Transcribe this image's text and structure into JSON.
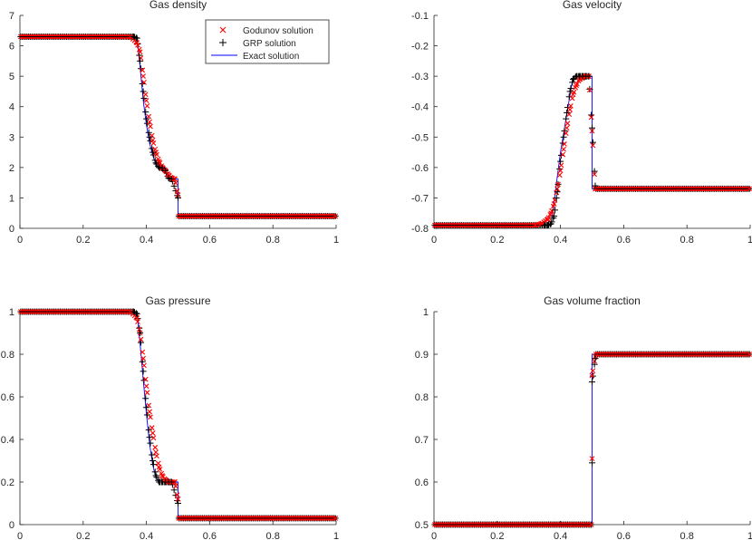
{
  "legend": {
    "entries": [
      {
        "label": "Godunov solution",
        "marker": "x",
        "color": "#ff0000"
      },
      {
        "label": "GRP solution",
        "marker": "+",
        "color": "#000000"
      },
      {
        "label": "Exact solution",
        "marker": "line",
        "color": "#0000ff"
      }
    ]
  },
  "chart_data": [
    {
      "id": "density",
      "type": "line",
      "title": "Gas density",
      "xlabel": "",
      "ylabel": "",
      "xlim": [
        0,
        1
      ],
      "ylim": [
        0,
        7
      ],
      "xticks": [
        0,
        0.2,
        0.4,
        0.6,
        0.8,
        1
      ],
      "xtick_labels": [
        "0",
        "0.2",
        "0.4",
        "0.6",
        "0.8",
        "1"
      ],
      "yticks": [
        0,
        1,
        2,
        3,
        4,
        5,
        6,
        7
      ],
      "ytick_labels": [
        "0",
        "1",
        "2",
        "3",
        "4",
        "5",
        "6",
        "7"
      ],
      "series": [
        {
          "name": "Exact solution",
          "x": [
            0,
            0.37,
            0.38,
            0.39,
            0.4,
            0.41,
            0.42,
            0.43,
            0.44,
            0.46,
            0.47,
            0.4701,
            0.5,
            0.5001,
            1
          ],
          "values": [
            6.3,
            6.3,
            5.3,
            4.2,
            3.4,
            2.8,
            2.4,
            2.1,
            2.0,
            1.98,
            1.65,
            1.62,
            1.62,
            0.4,
            0.4
          ]
        },
        {
          "name": "Godunov solution",
          "x": [
            0.35,
            0.37,
            0.38,
            0.39,
            0.4,
            0.41,
            0.42,
            0.43,
            0.44,
            0.45,
            0.46,
            0.47,
            0.48,
            0.49,
            0.5
          ],
          "values": [
            6.3,
            6.1,
            5.8,
            5.0,
            4.2,
            3.5,
            2.9,
            2.5,
            2.2,
            2.0,
            1.9,
            1.75,
            1.65,
            1.62,
            1.1
          ]
        },
        {
          "name": "GRP solution",
          "x": [
            0.36,
            0.37,
            0.38,
            0.39,
            0.4,
            0.41,
            0.42,
            0.43,
            0.44,
            0.45,
            0.46,
            0.47,
            0.48,
            0.5
          ],
          "values": [
            6.3,
            6.25,
            5.5,
            4.5,
            3.6,
            3.0,
            2.5,
            2.15,
            2.0,
            1.98,
            1.9,
            1.65,
            1.62,
            1.0
          ]
        }
      ]
    },
    {
      "id": "velocity",
      "type": "line",
      "title": "Gas velocity",
      "xlabel": "",
      "ylabel": "",
      "xlim": [
        0,
        1
      ],
      "ylim": [
        -0.8,
        -0.1
      ],
      "xticks": [
        0,
        0.2,
        0.4,
        0.6,
        0.8,
        1
      ],
      "xtick_labels": [
        "0",
        "0.2",
        "0.4",
        "0.6",
        "0.8",
        "1"
      ],
      "yticks": [
        -0.8,
        -0.7,
        -0.6,
        -0.5,
        -0.4,
        -0.3,
        -0.2,
        -0.1
      ],
      "ytick_labels": [
        "-0.8",
        "-0.7",
        "-0.6",
        "-0.5",
        "-0.4",
        "-0.3",
        "-0.2",
        "-0.1"
      ],
      "series": [
        {
          "name": "Exact solution",
          "x": [
            0,
            0.37,
            0.4,
            0.44,
            0.5,
            0.5001,
            1
          ],
          "values": [
            -0.79,
            -0.79,
            -0.55,
            -0.3,
            -0.3,
            -0.67,
            -0.67
          ]
        },
        {
          "name": "Godunov solution",
          "x": [
            0.32,
            0.34,
            0.36,
            0.37,
            0.38,
            0.39,
            0.4,
            0.41,
            0.42,
            0.43,
            0.44,
            0.45,
            0.46,
            0.47,
            0.48,
            0.49,
            0.5,
            0.51
          ],
          "values": [
            -0.79,
            -0.785,
            -0.77,
            -0.75,
            -0.72,
            -0.67,
            -0.61,
            -0.54,
            -0.47,
            -0.41,
            -0.36,
            -0.33,
            -0.31,
            -0.305,
            -0.3,
            -0.3,
            -0.48,
            -0.67
          ]
        },
        {
          "name": "GRP solution",
          "x": [
            0.35,
            0.36,
            0.37,
            0.38,
            0.39,
            0.4,
            0.41,
            0.42,
            0.43,
            0.44,
            0.45,
            0.46,
            0.47,
            0.48,
            0.49,
            0.5,
            0.51
          ],
          "values": [
            -0.79,
            -0.79,
            -0.785,
            -0.76,
            -0.68,
            -0.58,
            -0.5,
            -0.42,
            -0.35,
            -0.31,
            -0.3,
            -0.3,
            -0.3,
            -0.3,
            -0.3,
            -0.47,
            -0.66
          ]
        }
      ]
    },
    {
      "id": "pressure",
      "type": "line",
      "title": "Gas pressure",
      "xlabel": "",
      "ylabel": "",
      "xlim": [
        0,
        1
      ],
      "ylim": [
        0,
        1
      ],
      "xticks": [
        0,
        0.2,
        0.4,
        0.6,
        0.8,
        1
      ],
      "xtick_labels": [
        "0",
        "0.2",
        "0.4",
        "0.6",
        "0.8",
        "1"
      ],
      "yticks": [
        0,
        0.2,
        0.4,
        0.6,
        0.8,
        1
      ],
      "ytick_labels": [
        "0",
        "0.2",
        "0.4",
        "0.6",
        "0.8",
        "1"
      ],
      "series": [
        {
          "name": "Exact solution",
          "x": [
            0,
            0.37,
            0.38,
            0.39,
            0.4,
            0.41,
            0.42,
            0.43,
            0.44,
            0.5,
            0.5001,
            1
          ],
          "values": [
            1,
            1,
            0.85,
            0.68,
            0.52,
            0.38,
            0.28,
            0.22,
            0.2,
            0.2,
            0.03,
            0.03
          ]
        },
        {
          "name": "Godunov solution",
          "x": [
            0.35,
            0.37,
            0.38,
            0.39,
            0.4,
            0.41,
            0.42,
            0.43,
            0.44,
            0.45,
            0.46,
            0.47,
            0.48,
            0.49,
            0.5
          ],
          "values": [
            1.0,
            0.97,
            0.9,
            0.78,
            0.65,
            0.53,
            0.43,
            0.34,
            0.27,
            0.23,
            0.21,
            0.2,
            0.2,
            0.2,
            0.12
          ]
        },
        {
          "name": "GRP solution",
          "x": [
            0.36,
            0.37,
            0.38,
            0.39,
            0.4,
            0.41,
            0.42,
            0.43,
            0.44,
            0.45,
            0.46,
            0.47,
            0.48,
            0.5
          ],
          "values": [
            1.0,
            0.99,
            0.9,
            0.72,
            0.55,
            0.41,
            0.3,
            0.23,
            0.2,
            0.2,
            0.2,
            0.2,
            0.2,
            0.1
          ]
        }
      ]
    },
    {
      "id": "volume_fraction",
      "type": "line",
      "title": "Gas volume fraction",
      "xlabel": "",
      "ylabel": "",
      "xlim": [
        0,
        1
      ],
      "ylim": [
        0.5,
        1
      ],
      "xticks": [
        0,
        0.2,
        0.4,
        0.6,
        0.8,
        1
      ],
      "xtick_labels": [
        "0",
        "0.2",
        "0.4",
        "0.6",
        "0.8",
        "1"
      ],
      "yticks": [
        0.5,
        0.6,
        0.7,
        0.8,
        0.9,
        1
      ],
      "ytick_labels": [
        "0.5",
        "0.6",
        "0.7",
        "0.8",
        "0.9",
        "1"
      ],
      "series": [
        {
          "name": "Exact solution",
          "x": [
            0,
            0.5,
            0.5001,
            1
          ],
          "values": [
            0.5,
            0.5,
            0.9,
            0.9
          ]
        },
        {
          "name": "Godunov solution",
          "x": [
            0.5,
            0.5,
            0.51
          ],
          "values": [
            0.655,
            0.85,
            0.895
          ]
        },
        {
          "name": "GRP solution",
          "x": [
            0.5,
            0.5,
            0.51
          ],
          "values": [
            0.645,
            0.835,
            0.89
          ]
        }
      ]
    }
  ]
}
